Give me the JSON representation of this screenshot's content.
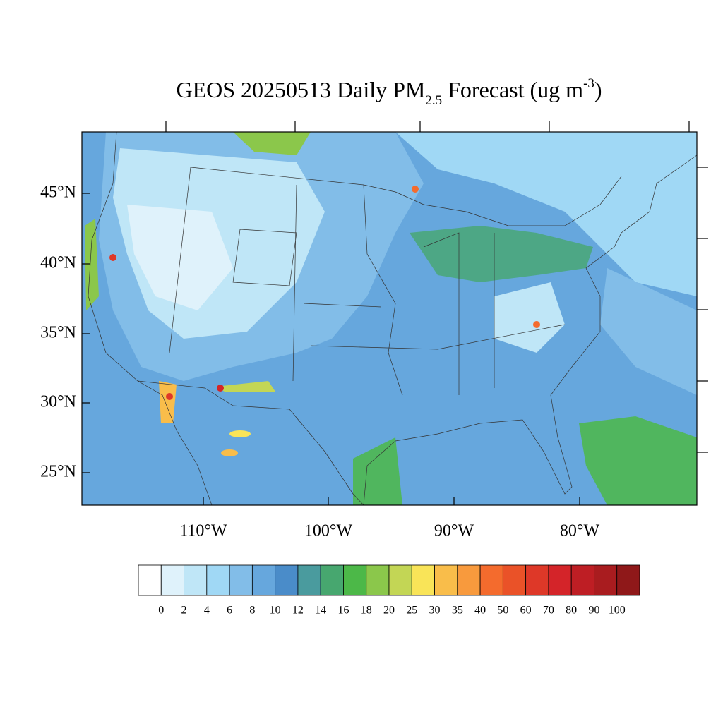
{
  "title": {
    "parts": [
      "GEOS 20250513 Daily PM",
      "2.5",
      " Forecast (ug m",
      "-3",
      ")"
    ]
  },
  "map": {
    "lat_labels": [
      "45°N",
      "40°N",
      "35°N",
      "30°N",
      "25°N"
    ],
    "lon_labels": [
      "110°W",
      "100°W",
      "90°W",
      "80°W"
    ]
  },
  "colorbar": {
    "colors": [
      "#ffffff",
      "#dff2fb",
      "#bfe6f7",
      "#a0d8f5",
      "#82bde8",
      "#66a7dd",
      "#4a8cc9",
      "#4a9b9e",
      "#47a76f",
      "#4cb848",
      "#8bc74b",
      "#c3d655",
      "#f9e458",
      "#f9bd4a",
      "#f89a3d",
      "#f46b2d",
      "#ea5228",
      "#de3828",
      "#d42429",
      "#be1e24",
      "#a91c1f",
      "#8f1819"
    ],
    "labels": [
      "0",
      "2",
      "4",
      "6",
      "8",
      "10",
      "12",
      "14",
      "16",
      "18",
      "20",
      "25",
      "30",
      "35",
      "40",
      "50",
      "60",
      "70",
      "80",
      "90",
      "100"
    ]
  }
}
